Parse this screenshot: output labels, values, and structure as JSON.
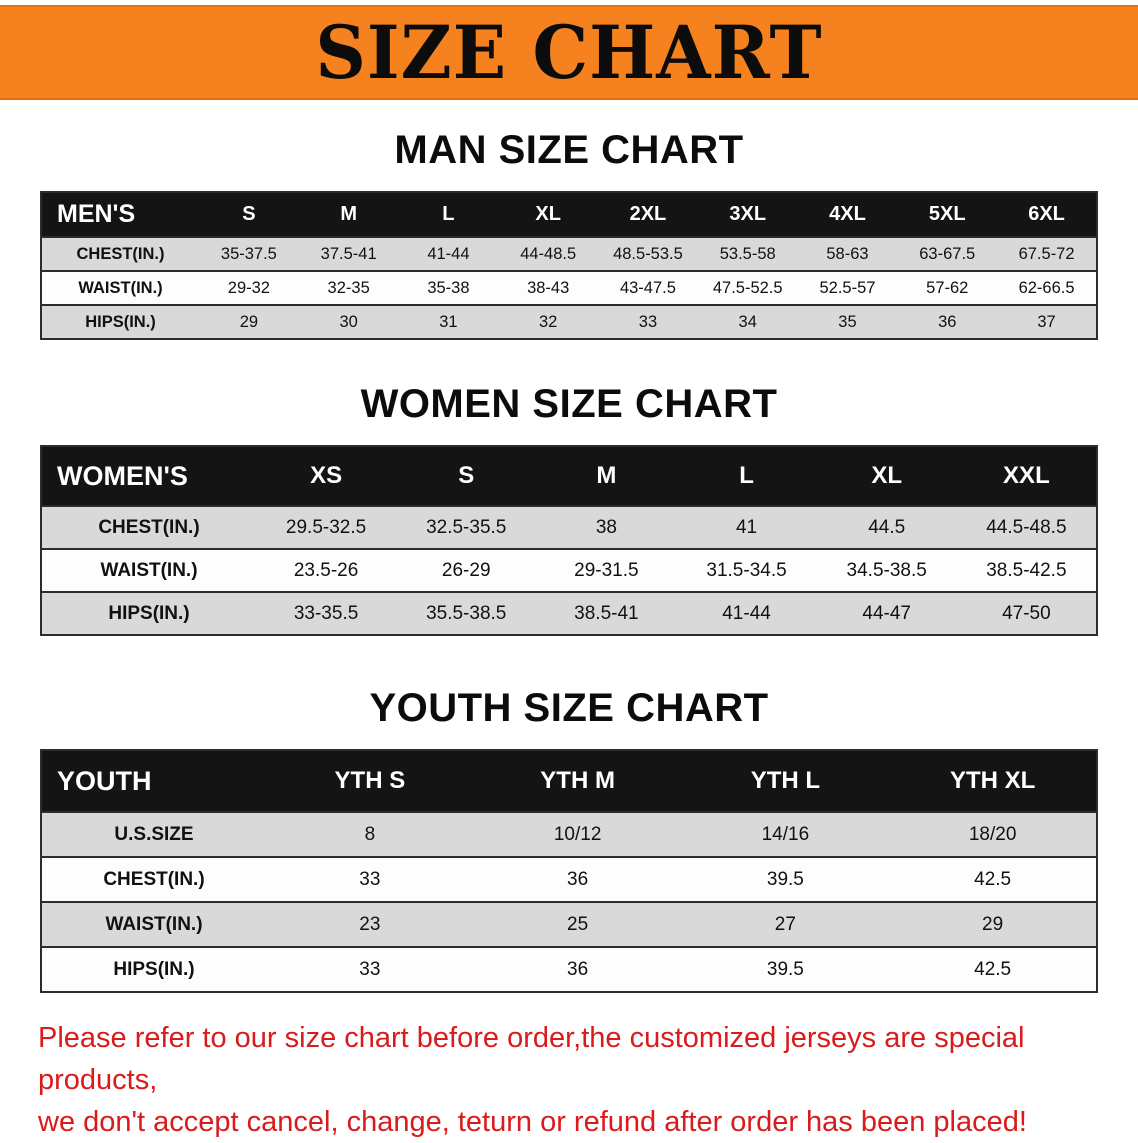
{
  "banner": {
    "title": "SIZE CHART",
    "bg_color": "#f5821e"
  },
  "tables": [
    {
      "id": "men",
      "heading": "MAN SIZE CHART",
      "header": [
        "MEN'S",
        "S",
        "M",
        "L",
        "XL",
        "2XL",
        "3XL",
        "4XL",
        "5XL",
        "6XL"
      ],
      "rows": [
        {
          "label": "CHEST(IN.)",
          "values": [
            "35-37.5",
            "37.5-41",
            "41-44",
            "44-48.5",
            "48.5-53.5",
            "53.5-58",
            "58-63",
            "63-67.5",
            "67.5-72"
          ]
        },
        {
          "label": "WAIST(IN.)",
          "values": [
            "29-32",
            "32-35",
            "35-38",
            "38-43",
            "43-47.5",
            "47.5-52.5",
            "52.5-57",
            "57-62",
            "62-66.5"
          ]
        },
        {
          "label": "HIPS(IN.)",
          "values": [
            "29",
            "30",
            "31",
            "32",
            "33",
            "34",
            "35",
            "36",
            "37"
          ]
        }
      ]
    },
    {
      "id": "women",
      "heading": "WOMEN SIZE CHART",
      "header": [
        "WOMEN'S",
        "XS",
        "S",
        "M",
        "L",
        "XL",
        "XXL"
      ],
      "rows": [
        {
          "label": "CHEST(IN.)",
          "values": [
            "29.5-32.5",
            "32.5-35.5",
            "38",
            "41",
            "44.5",
            "44.5-48.5"
          ]
        },
        {
          "label": "WAIST(IN.)",
          "values": [
            "23.5-26",
            "26-29",
            "29-31.5",
            "31.5-34.5",
            "34.5-38.5",
            "38.5-42.5"
          ]
        },
        {
          "label": "HIPS(IN.)",
          "values": [
            "33-35.5",
            "35.5-38.5",
            "38.5-41",
            "41-44",
            "44-47",
            "47-50"
          ]
        }
      ]
    },
    {
      "id": "youth",
      "heading": "YOUTH SIZE CHART",
      "header": [
        "YOUTH",
        "YTH S",
        "YTH M",
        "YTH L",
        "YTH XL"
      ],
      "rows": [
        {
          "label": "U.S.SIZE",
          "values": [
            "8",
            "10/12",
            "14/16",
            "18/20"
          ]
        },
        {
          "label": "CHEST(IN.)",
          "values": [
            "33",
            "36",
            "39.5",
            "42.5"
          ]
        },
        {
          "label": "WAIST(IN.)",
          "values": [
            "23",
            "25",
            "27",
            "29"
          ]
        },
        {
          "label": "HIPS(IN.)",
          "values": [
            "33",
            "36",
            "39.5",
            "42.5"
          ]
        }
      ]
    }
  ],
  "disclaimer": {
    "line1": "Please refer to our size chart before order,the customized jerseys are special products,",
    "line2": "we don't accept cancel, change, teturn or refund after order has been placed!",
    "color": "#da1b1b"
  }
}
